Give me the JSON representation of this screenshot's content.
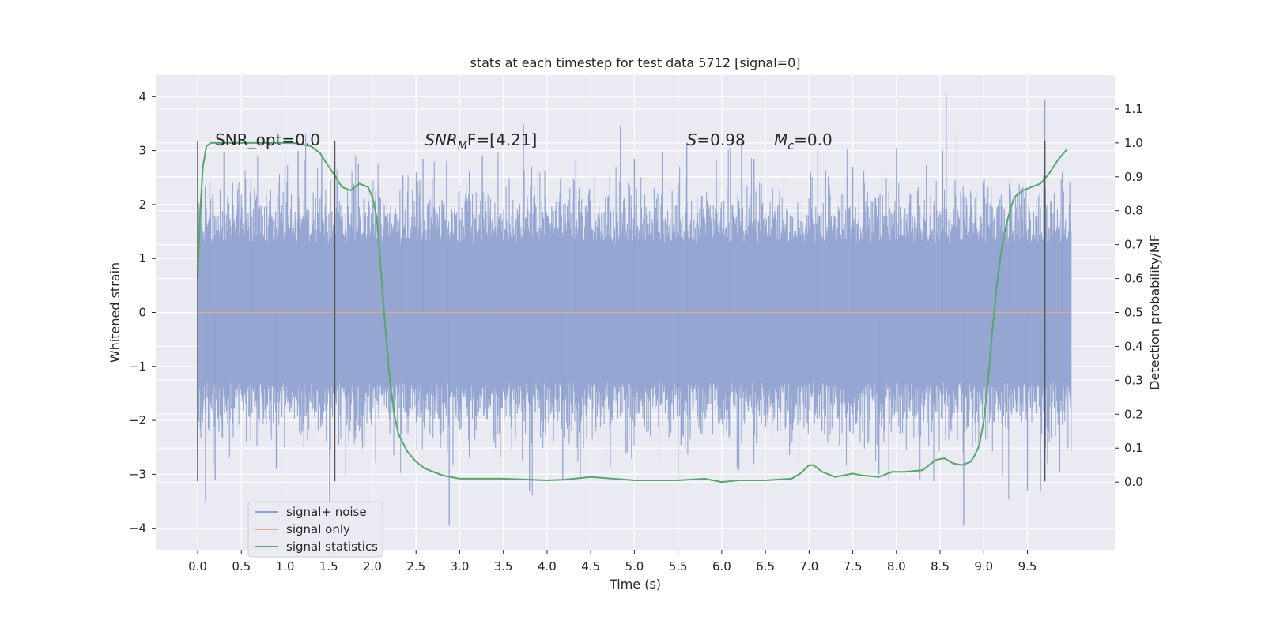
{
  "chart_data": {
    "type": "line",
    "title": "stats at each timestep for test data 5712 [signal=0]",
    "xlabel": "Time (s)",
    "ylabel": "Whitened strain",
    "y2label": "Detection probability/MF",
    "xlim": [
      -0.48,
      10.5
    ],
    "ylim": [
      -4.4,
      4.4
    ],
    "y2lim": [
      -0.2,
      1.2
    ],
    "x_ticks": [
      0.0,
      0.5,
      1.0,
      1.5,
      2.0,
      2.5,
      3.0,
      3.5,
      4.0,
      4.5,
      5.0,
      5.5,
      6.0,
      6.5,
      7.0,
      7.5,
      8.0,
      8.5,
      9.0,
      9.5
    ],
    "x_tick_labels": [
      "0.0",
      "0.5",
      "1.0",
      "1.5",
      "2.0",
      "2.5",
      "3.0",
      "3.5",
      "4.0",
      "4.5",
      "5.0",
      "5.5",
      "6.0",
      "6.5",
      "7.0",
      "7.5",
      "8.0",
      "8.5",
      "9.0",
      "9.5"
    ],
    "y_ticks": [
      -4,
      -3,
      -2,
      -1,
      0,
      1,
      2,
      3,
      4
    ],
    "y_tick_labels": [
      "−4",
      "−3",
      "−2",
      "−1",
      "0",
      "1",
      "2",
      "3",
      "4"
    ],
    "y2_ticks": [
      0.0,
      0.1,
      0.2,
      0.3,
      0.4,
      0.5,
      0.6,
      0.7,
      0.8,
      0.9,
      1.0,
      1.1
    ],
    "y2_tick_labels": [
      "0.0",
      "0.1",
      "0.2",
      "0.3",
      "0.4",
      "0.5",
      "0.6",
      "0.7",
      "0.8",
      "0.9",
      "1.0",
      "1.1"
    ],
    "series": [
      {
        "name": "signal+ noise",
        "color": "#8fa2cf",
        "axis": "left",
        "style": "noise",
        "x_range": [
          0.0,
          10.0
        ],
        "typical_band": [
          -1.3,
          1.3
        ],
        "peaks": [
          {
            "x": 0.09,
            "y": -3.5
          },
          {
            "x": 0.14,
            "y": 2.4
          },
          {
            "x": 0.2,
            "y": -3.1
          },
          {
            "x": 0.4,
            "y": 2.4
          },
          {
            "x": 0.61,
            "y": 2.5
          },
          {
            "x": 0.9,
            "y": -2.9
          },
          {
            "x": 1.0,
            "y": 2.7
          },
          {
            "x": 1.15,
            "y": 3.0
          },
          {
            "x": 1.42,
            "y": 2.9
          },
          {
            "x": 1.84,
            "y": 2.75
          },
          {
            "x": 2.35,
            "y": 2.55
          },
          {
            "x": 2.58,
            "y": 2.85
          },
          {
            "x": 2.88,
            "y": -3.95
          },
          {
            "x": 2.85,
            "y": 2.8
          },
          {
            "x": 3.26,
            "y": 2.9
          },
          {
            "x": 3.8,
            "y": -3.3
          },
          {
            "x": 4.18,
            "y": -3.1
          },
          {
            "x": 4.33,
            "y": 2.85
          },
          {
            "x": 5.0,
            "y": 2.85
          },
          {
            "x": 5.6,
            "y": 3.15
          },
          {
            "x": 5.5,
            "y": -3.1
          },
          {
            "x": 6.1,
            "y": 3.05
          },
          {
            "x": 6.37,
            "y": 2.85
          },
          {
            "x": 7.1,
            "y": 3.0
          },
          {
            "x": 7.5,
            "y": 2.7
          },
          {
            "x": 7.8,
            "y": -3.0
          },
          {
            "x": 8.0,
            "y": 3.05
          },
          {
            "x": 8.53,
            "y": 3.0
          },
          {
            "x": 8.57,
            "y": 4.05
          },
          {
            "x": 8.77,
            "y": -3.95
          },
          {
            "x": 9.3,
            "y": 2.5
          },
          {
            "x": 9.5,
            "y": -3.3
          },
          {
            "x": 9.7,
            "y": 3.95
          },
          {
            "x": 9.65,
            "y": -3.3
          },
          {
            "x": 9.9,
            "y": 2.6
          }
        ]
      },
      {
        "name": "signal only",
        "color": "#e6a88c",
        "axis": "left",
        "x": [
          0.0,
          10.0
        ],
        "y": [
          0.0,
          0.0
        ]
      },
      {
        "name": "signal statistics",
        "color": "#55a868",
        "axis": "right",
        "x": [
          0.0,
          0.03,
          0.06,
          0.1,
          0.15,
          0.25,
          0.5,
          0.8,
          1.1,
          1.3,
          1.4,
          1.5,
          1.58,
          1.65,
          1.75,
          1.85,
          1.95,
          2.0,
          2.05,
          2.1,
          2.15,
          2.2,
          2.25,
          2.3,
          2.4,
          2.5,
          2.6,
          2.8,
          3.0,
          3.5,
          4.0,
          4.2,
          4.5,
          5.0,
          5.5,
          5.8,
          6.0,
          6.2,
          6.5,
          6.8,
          6.9,
          7.0,
          7.05,
          7.15,
          7.3,
          7.5,
          7.6,
          7.8,
          7.95,
          8.1,
          8.3,
          8.45,
          8.55,
          8.65,
          8.75,
          8.85,
          8.9,
          8.95,
          9.0,
          9.05,
          9.1,
          9.15,
          9.2,
          9.25,
          9.3,
          9.35,
          9.45,
          9.55,
          9.65,
          9.75,
          9.85,
          9.95
        ],
        "y": [
          0.6,
          0.8,
          0.93,
          0.99,
          1.0,
          1.0,
          1.0,
          1.0,
          1.0,
          0.99,
          0.97,
          0.93,
          0.9,
          0.87,
          0.86,
          0.88,
          0.87,
          0.84,
          0.78,
          0.62,
          0.45,
          0.3,
          0.2,
          0.14,
          0.09,
          0.06,
          0.04,
          0.02,
          0.01,
          0.01,
          0.005,
          0.007,
          0.015,
          0.005,
          0.005,
          0.01,
          0.0,
          0.005,
          0.005,
          0.01,
          0.025,
          0.05,
          0.05,
          0.03,
          0.015,
          0.025,
          0.02,
          0.015,
          0.03,
          0.03,
          0.035,
          0.065,
          0.07,
          0.055,
          0.05,
          0.06,
          0.08,
          0.11,
          0.18,
          0.3,
          0.45,
          0.58,
          0.68,
          0.75,
          0.8,
          0.84,
          0.86,
          0.87,
          0.88,
          0.91,
          0.95,
          0.98
        ]
      }
    ],
    "vlines": [
      {
        "x": 0.0,
        "y_range": [
          -3.13,
          3.18
        ]
      },
      {
        "x": 1.57,
        "y_range": [
          -3.13,
          3.18
        ]
      },
      {
        "x": 9.7,
        "y_range": [
          -3.13,
          3.18
        ]
      }
    ],
    "annotations": [
      {
        "name": "snr-opt-annotation",
        "x": 0.2,
        "y": 3.1,
        "text": "SNR_opt=0.0"
      },
      {
        "name": "snr-mf-annotation",
        "x": 2.6,
        "y": 3.1,
        "prefix": "SNR",
        "sub": "M",
        "suffix": "F=[4.21]",
        "italic_prefix": true
      },
      {
        "name": "s-annotation",
        "x": 5.6,
        "y": 3.1,
        "prefix": "S",
        "sub": "",
        "suffix": "=0.98",
        "italic_prefix": true
      },
      {
        "name": "mc-annotation",
        "x": 6.6,
        "y": 3.1,
        "prefix": "M",
        "sub": "c",
        "suffix": "=0.0",
        "italic_prefix": true
      }
    ],
    "legend": {
      "placement": "lower-left",
      "entries": [
        "signal+ noise",
        "signal only",
        "signal statistics"
      ]
    },
    "grid": true,
    "background": "#eaeaf2"
  }
}
